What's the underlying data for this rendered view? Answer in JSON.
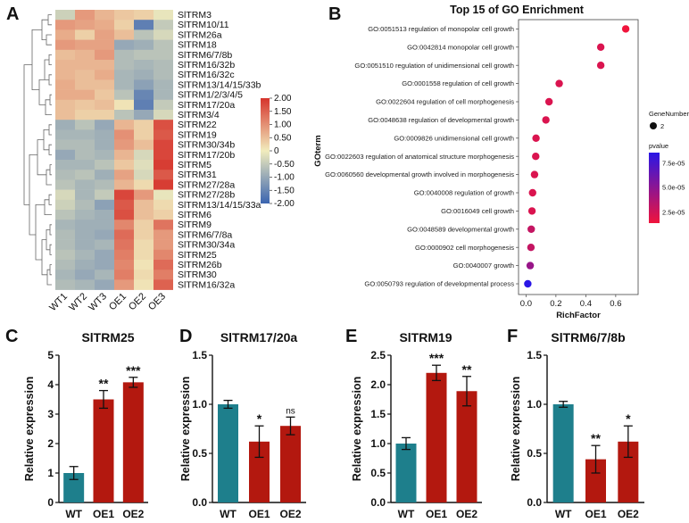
{
  "panel_labels": {
    "a": "A",
    "b": "B",
    "c": "C",
    "d": "D",
    "e": "E",
    "f": "F"
  },
  "chart_data": [
    {
      "type": "heatmap",
      "panel": "A",
      "columns": [
        "WT1",
        "WT2",
        "WT3",
        "OE1",
        "OE2",
        "OE3"
      ],
      "rows": [
        "SlTRM3",
        "SlTRM10/11",
        "SlTRM26a",
        "SlTRM18",
        "SlTRM6/7/8b",
        "SlTRM16/32b",
        "SlTRM16/32c",
        "SlTRM13/14/15/33b",
        "SlTRM1/2/3/4/5",
        "SlTRM17/20a",
        "SlTRM3/4",
        "SlTRM22",
        "SlTRM19",
        "SlTRM30/34b",
        "SlTRM17/20b",
        "SlTRM5",
        "SlTRM31",
        "SlTRM27/28a",
        "SlTRM27/28b",
        "SlTRM13/14/15/33a",
        "SlTRM6",
        "SlTRM9",
        "SlTRM6/7/8a",
        "SlTRM30/34a",
        "SlTRM25",
        "SlTRM26b",
        "SlTRM30",
        "SlTRM16/32a"
      ],
      "values": [
        [
          -0.4,
          0.9,
          0.6,
          0.4,
          0.3,
          -0.1
        ],
        [
          0.9,
          0.8,
          0.7,
          0.3,
          -1.6,
          -0.5
        ],
        [
          0.7,
          0.3,
          0.8,
          0.5,
          -0.6,
          -0.3
        ],
        [
          0.9,
          0.8,
          0.8,
          -1.0,
          -0.9,
          -0.6
        ],
        [
          0.5,
          0.6,
          0.9,
          -0.7,
          -0.6,
          -0.6
        ],
        [
          0.6,
          0.6,
          0.6,
          -0.7,
          -0.8,
          -0.7
        ],
        [
          0.6,
          0.5,
          0.7,
          -0.8,
          -0.9,
          -0.7
        ],
        [
          0.7,
          0.5,
          0.5,
          -0.8,
          -1.1,
          -0.8
        ],
        [
          0.7,
          0.7,
          0.4,
          -0.6,
          -1.5,
          -0.8
        ],
        [
          0.5,
          0.4,
          0.5,
          0.1,
          -1.6,
          -0.5
        ],
        [
          0.5,
          0.3,
          0.3,
          -0.6,
          -1.0,
          -0.3
        ],
        [
          -0.9,
          -0.6,
          -1.0,
          0.6,
          0.3,
          1.7
        ],
        [
          -0.8,
          -0.8,
          -0.9,
          1.0,
          0.3,
          1.6
        ],
        [
          -0.7,
          -0.7,
          -0.9,
          0.9,
          0.5,
          1.8
        ],
        [
          -1.0,
          -0.7,
          -0.8,
          0.6,
          -0.3,
          1.8
        ],
        [
          -0.8,
          -0.8,
          -0.6,
          0.4,
          -0.2,
          1.9
        ],
        [
          -0.7,
          -0.6,
          -0.9,
          0.8,
          -0.3,
          1.6
        ],
        [
          -0.6,
          -0.8,
          -0.7,
          0.6,
          0.2,
          1.9
        ],
        [
          -0.3,
          -0.8,
          -0.5,
          1.8,
          0.9,
          -0.1
        ],
        [
          -0.4,
          -0.7,
          -1.1,
          1.6,
          0.5,
          0.2
        ],
        [
          -0.6,
          -0.8,
          -0.9,
          1.7,
          0.5,
          0.3
        ],
        [
          -0.8,
          -0.9,
          -0.9,
          1.1,
          0.3,
          1.3
        ],
        [
          -0.7,
          -0.9,
          -1.0,
          1.4,
          0.3,
          0.9
        ],
        [
          -0.7,
          -0.9,
          -0.8,
          1.3,
          0.2,
          0.9
        ],
        [
          -0.6,
          -0.8,
          -1.0,
          1.2,
          0.2,
          1.1
        ],
        [
          -0.7,
          -0.9,
          -1.0,
          1.1,
          0.1,
          1.4
        ],
        [
          -0.8,
          -1.0,
          -0.8,
          1.2,
          0.2,
          1.2
        ],
        [
          -0.7,
          -0.8,
          -1.0,
          0.9,
          0.1,
          1.5
        ]
      ],
      "colorbar": {
        "label": "GOterm",
        "ticks": [
          "2.00",
          "1.50",
          "1.00",
          "0.50",
          "0",
          "-0.50",
          "-1.00",
          "-1.50",
          "-2.00"
        ],
        "range": [
          -2,
          2
        ]
      },
      "colors": {
        "low": "#3a64b0",
        "mid": "#f1ecbd",
        "high": "#d6342c"
      }
    },
    {
      "type": "scatter",
      "panel": "B",
      "title": "Top 15 of GO Enrichment",
      "xlabel": "RichFactor",
      "xlim": [
        -0.05,
        0.75
      ],
      "xticks": [
        "0.0",
        "0.2",
        "0.4",
        "0.6"
      ],
      "terms": [
        "GO:0051513 regulation of monopolar cell growth",
        "GO:0042814 monopolar cell growth",
        "GO:0051510 regulation of unidimensional cell growth",
        "GO:0001558 regulation of cell growth",
        "GO:0022604 regulation of cell morphogenesis",
        "GO:0048638 regulation of developmental growth",
        "GO:0009826 unidimensional cell growth",
        "GO:0022603 regulation of anatomical structure morphogenesis",
        "GO:0060560 developmental growth involved in morphogenesis",
        "GO:0040008 regulation of growth",
        "GO:0016049 cell growth",
        "GO:0048589 developmental growth",
        "GO:0000902 cell morphogenesis",
        "GO:0040007 growth",
        "GO:0050793 regulation of developmental process"
      ],
      "richfactor": [
        0.667,
        0.5,
        0.5,
        0.222,
        0.154,
        0.133,
        0.067,
        0.065,
        0.057,
        0.044,
        0.04,
        0.035,
        0.033,
        0.028,
        0.012
      ],
      "pvalue": [
        1e-05,
        2e-05,
        2e-05,
        2e-05,
        2e-05,
        2e-05,
        2e-05,
        2e-05,
        2e-05,
        2e-05,
        2e-05,
        3e-05,
        3e-05,
        5e-05,
        0.0001
      ],
      "gene_number": [
        2,
        2,
        2,
        2,
        2,
        2,
        2,
        2,
        2,
        2,
        2,
        2,
        2,
        2,
        2
      ],
      "legend": {
        "size_title": "GeneNumber",
        "size_value": "2",
        "color_title": "pvalue",
        "color_ticks": [
          "7.5e-05",
          "5.0e-05",
          "2.5e-05"
        ]
      },
      "colors": {
        "low_p": "#f0143c",
        "high_p": "#2a17e6"
      }
    },
    {
      "type": "bar",
      "panel": "C",
      "title": "SlTRM25",
      "categories": [
        "WT",
        "OE1",
        "OE2"
      ],
      "values": [
        1.0,
        3.5,
        4.08
      ],
      "errors": [
        0.22,
        0.3,
        0.17
      ],
      "significance": [
        "",
        "**",
        "***"
      ],
      "ylabel": "Relative expression",
      "ylim": [
        0,
        5
      ],
      "yticks": [
        "0",
        "1",
        "2",
        "3",
        "4",
        "5"
      ]
    },
    {
      "type": "bar",
      "panel": "D",
      "title": "SlTRM17/20a",
      "categories": [
        "WT",
        "OE1",
        "OE2"
      ],
      "values": [
        1.0,
        0.62,
        0.78
      ],
      "errors": [
        0.04,
        0.16,
        0.09
      ],
      "significance": [
        "",
        "*",
        "ns"
      ],
      "ylabel": "Relative expression",
      "ylim": [
        0,
        1.5
      ],
      "yticks": [
        "0.0",
        "0.5",
        "1.0",
        "1.5"
      ]
    },
    {
      "type": "bar",
      "panel": "E",
      "title": "SlTRM19",
      "categories": [
        "WT",
        "OE1",
        "OE2"
      ],
      "values": [
        1.0,
        2.2,
        1.89
      ],
      "errors": [
        0.1,
        0.13,
        0.25
      ],
      "significance": [
        "",
        "***",
        "**"
      ],
      "ylabel": "Relative expression",
      "ylim": [
        0,
        2.5
      ],
      "yticks": [
        "0.0",
        "0.5",
        "1.0",
        "1.5",
        "2.0",
        "2.5"
      ]
    },
    {
      "type": "bar",
      "panel": "F",
      "title": "SlTRM6/7/8b",
      "categories": [
        "WT",
        "OE1",
        "OE2"
      ],
      "values": [
        1.0,
        0.44,
        0.62
      ],
      "errors": [
        0.03,
        0.14,
        0.16
      ],
      "significance": [
        "",
        "**",
        "*"
      ],
      "ylabel": "Relative expression",
      "ylim": [
        0,
        1.5
      ],
      "yticks": [
        "0.0",
        "0.5",
        "1.0",
        "1.5"
      ]
    }
  ],
  "bar_colors": {
    "WT": "#1e7f8c",
    "OE": "#b3180f"
  }
}
